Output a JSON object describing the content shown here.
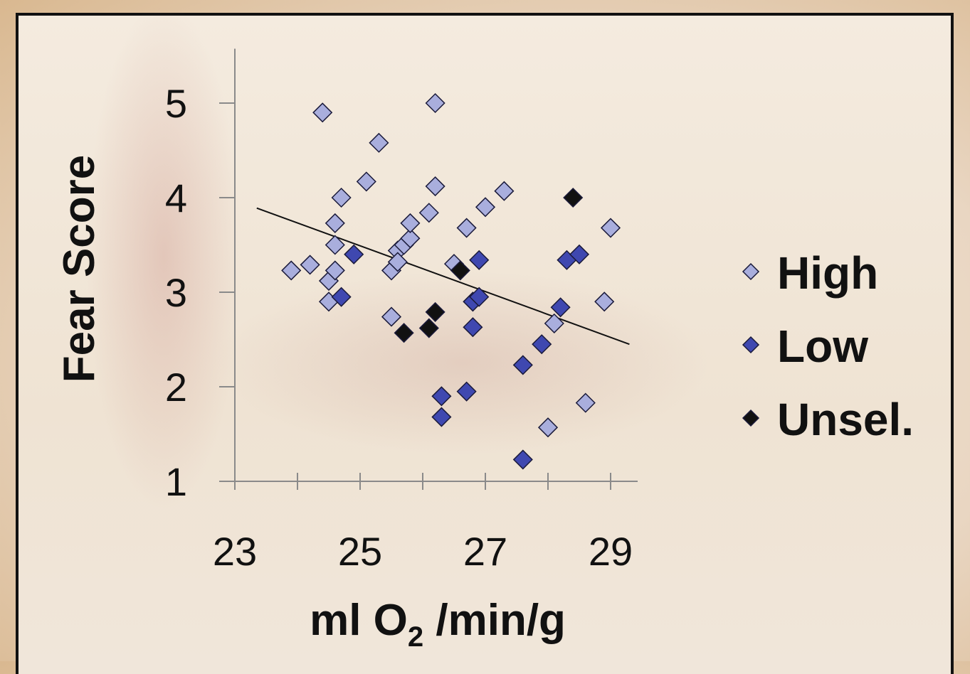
{
  "chart_data": {
    "type": "scatter",
    "xlabel_main": "ml O",
    "xlabel_sub": "2",
    "xlabel_rest": " /min/g",
    "ylabel": "Fear Score",
    "xlim": [
      23,
      29.5
    ],
    "ylim": [
      1,
      5.5
    ],
    "x_ticks": [
      23,
      25,
      27,
      29
    ],
    "y_ticks": [
      1,
      2,
      3,
      4,
      5
    ],
    "colors": {
      "High": "#a9aedd",
      "Low": "#3f48b0",
      "Unsel.": "#111111"
    },
    "legend_position": "right",
    "series": [
      {
        "name": "High",
        "points": [
          [
            23.9,
            3.23
          ],
          [
            24.2,
            3.29
          ],
          [
            24.4,
            4.9
          ],
          [
            24.5,
            3.12
          ],
          [
            24.5,
            2.9
          ],
          [
            24.6,
            3.73
          ],
          [
            24.6,
            3.5
          ],
          [
            24.6,
            3.23
          ],
          [
            24.7,
            4.0
          ],
          [
            25.1,
            4.17
          ],
          [
            25.3,
            4.58
          ],
          [
            25.5,
            3.23
          ],
          [
            25.5,
            2.74
          ],
          [
            25.6,
            3.44
          ],
          [
            25.6,
            3.32
          ],
          [
            25.7,
            3.5
          ],
          [
            25.8,
            3.57
          ],
          [
            25.8,
            3.73
          ],
          [
            26.1,
            3.84
          ],
          [
            26.2,
            5.0
          ],
          [
            26.2,
            4.12
          ],
          [
            26.5,
            3.3
          ],
          [
            26.7,
            3.68
          ],
          [
            26.8,
            2.9
          ],
          [
            27.0,
            3.9
          ],
          [
            27.3,
            4.07
          ],
          [
            28.1,
            2.67
          ],
          [
            28.0,
            1.57
          ],
          [
            28.6,
            1.83
          ],
          [
            28.9,
            2.9
          ],
          [
            29.0,
            3.68
          ]
        ]
      },
      {
        "name": "Low",
        "points": [
          [
            24.7,
            2.95
          ],
          [
            24.9,
            3.4
          ],
          [
            26.3,
            1.9
          ],
          [
            26.3,
            1.68
          ],
          [
            26.7,
            1.95
          ],
          [
            26.8,
            2.9
          ],
          [
            26.8,
            2.63
          ],
          [
            26.9,
            2.95
          ],
          [
            26.9,
            3.34
          ],
          [
            27.6,
            2.23
          ],
          [
            27.6,
            1.23
          ],
          [
            27.9,
            2.45
          ],
          [
            28.2,
            2.84
          ],
          [
            28.3,
            3.34
          ],
          [
            28.5,
            3.4
          ]
        ]
      },
      {
        "name": "Unsel.",
        "points": [
          [
            25.7,
            2.57
          ],
          [
            26.1,
            2.62
          ],
          [
            26.2,
            2.79
          ],
          [
            26.6,
            3.23
          ],
          [
            28.4,
            4.0
          ]
        ]
      }
    ],
    "trendline": {
      "x": [
        23.35,
        29.3
      ],
      "y": [
        3.89,
        2.45
      ]
    }
  }
}
